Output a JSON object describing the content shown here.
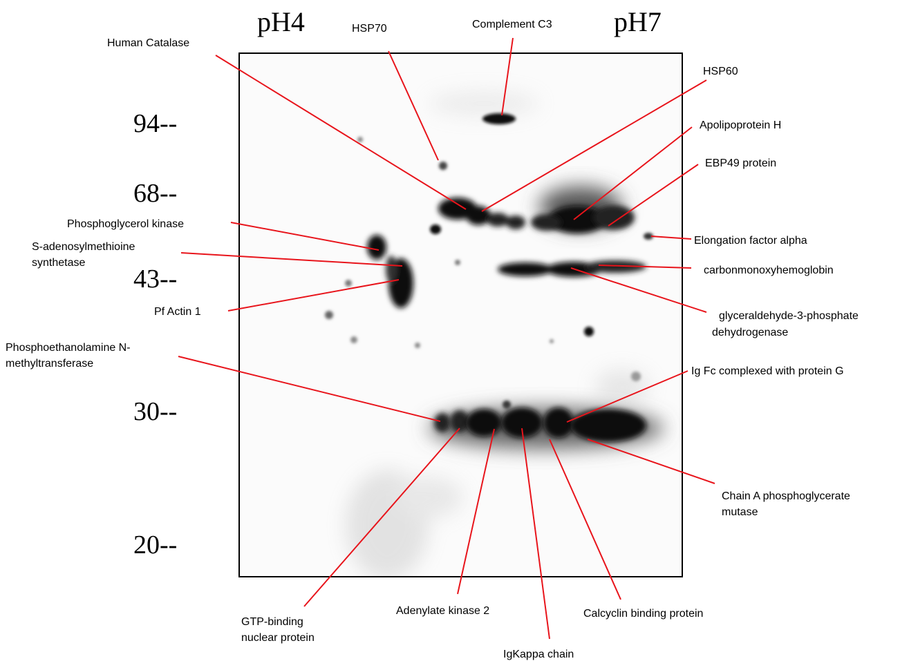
{
  "gel": {
    "ph_left": "pH4",
    "ph_right": "pH7",
    "mw_markers": [
      "94--",
      "68--",
      "43--",
      "30--",
      "20--"
    ]
  },
  "labels": {
    "hsp70": "HSP70",
    "complement_c3": "Complement C3",
    "human_catalase": "Human Catalase",
    "hsp60": "HSP60",
    "apolipoprotein_h": "Apolipoprotein H",
    "ebp49": "EBP49 protein",
    "phosphoglycerol_kinase": "Phosphoglycerol kinase",
    "sam_synthetase_1": "S-adenosylmethioine",
    "sam_synthetase_2": "synthetase",
    "elongation_factor": "Elongation factor alpha",
    "carbonmonoxyhemoglobin": "carbonmonoxyhemoglobin",
    "pf_actin": "Pf Actin 1",
    "gapdh_1": "glyceraldehyde-3-phosphate",
    "gapdh_2": "dehydrogenase",
    "pemt_1": "Phosphoethanolamine N-",
    "pemt_2": "methyltransferase",
    "ig_fc": "Ig Fc complexed with protein G",
    "pgm_1": "Chain A phosphoglycerate",
    "pgm_2": "mutase",
    "gtp_1": "GTP-binding",
    "gtp_2": "nuclear protein",
    "adenylate_kinase": "Adenylate kinase 2",
    "calcyclin": "Calcyclin binding protein",
    "igkappa": "IgKappa chain"
  },
  "colors": {
    "leader": "#e8141b",
    "spot": "#111111",
    "frame": "#000000"
  }
}
